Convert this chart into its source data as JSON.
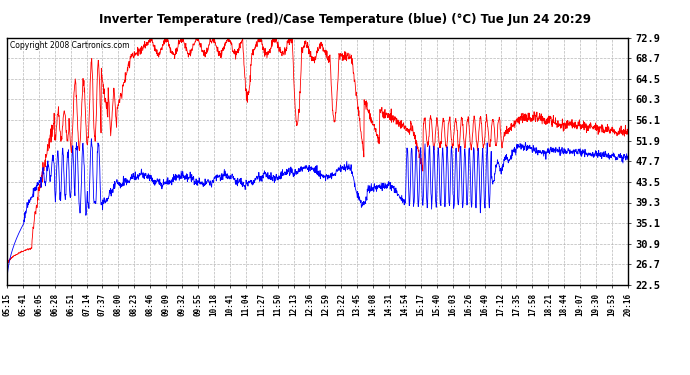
{
  "title": "Inverter Temperature (red)/Case Temperature (blue) (°C) Tue Jun 24 20:29",
  "copyright": "Copyright 2008 Cartronics.com",
  "yticks": [
    22.5,
    26.7,
    30.9,
    35.1,
    39.3,
    43.5,
    47.7,
    51.9,
    56.1,
    60.3,
    64.5,
    68.7,
    72.9
  ],
  "ymin": 22.5,
  "ymax": 72.9,
  "red_color": "#ff0000",
  "blue_color": "#0000ff",
  "bg_color": "#ffffff",
  "grid_color": "#b0b0b0",
  "xtick_labels": [
    "05:15",
    "05:41",
    "06:05",
    "06:28",
    "06:51",
    "07:14",
    "07:37",
    "08:00",
    "08:23",
    "08:46",
    "09:09",
    "09:32",
    "09:55",
    "10:18",
    "10:41",
    "11:04",
    "11:27",
    "11:50",
    "12:13",
    "12:36",
    "12:59",
    "13:22",
    "13:45",
    "14:08",
    "14:31",
    "14:54",
    "15:17",
    "15:40",
    "16:03",
    "16:26",
    "16:49",
    "17:12",
    "17:35",
    "17:58",
    "18:21",
    "18:44",
    "19:07",
    "19:30",
    "19:53",
    "20:16"
  ]
}
